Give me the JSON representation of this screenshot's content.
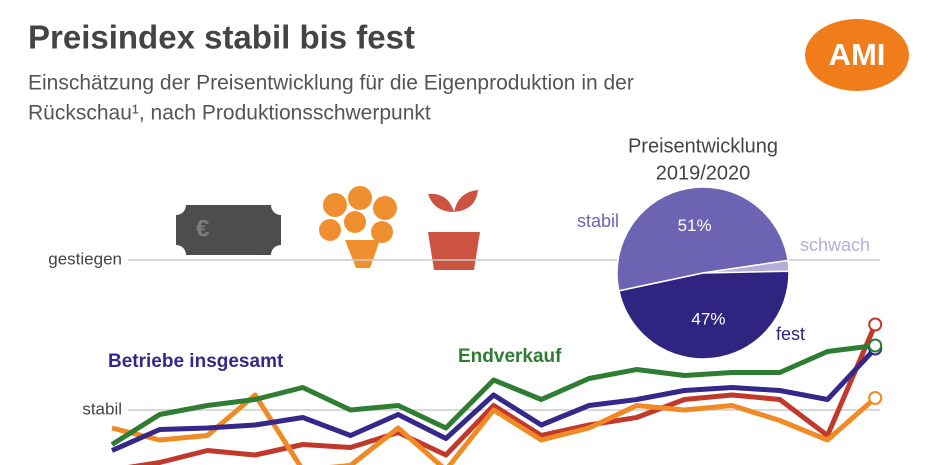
{
  "logo": "AMI",
  "chart_data": [
    {
      "type": "line",
      "title": "Preisindex stabil bis fest",
      "subtitle": [
        "Einschätzung der Preisentwicklung für die Eigenproduktion in der",
        "Rückschau¹, nach Produktionsschwerpunkt"
      ],
      "categories": [
        null,
        null,
        null,
        null,
        null,
        null,
        null,
        null,
        null,
        null,
        null,
        null,
        null,
        null,
        null,
        null,
        null
      ],
      "ylim": [
        -0.4,
        1.2
      ],
      "yticks": [
        {
          "value": 0,
          "label": "stabil"
        },
        {
          "value": 1,
          "label": "gestiegen"
        }
      ],
      "grid": true,
      "series": [
        {
          "color": "#c0392b",
          "values": [
            -0.4,
            -0.35,
            -0.27,
            -0.3,
            -0.23,
            -0.25,
            -0.15,
            -0.3,
            0.03,
            -0.17,
            -0.1,
            -0.05,
            0.07,
            0.1,
            0.07,
            -0.17,
            0.57
          ]
        },
        {
          "color": "#f08a24",
          "values": [
            -0.12,
            -0.2,
            -0.17,
            0.1,
            -0.4,
            -0.37,
            -0.12,
            -0.4,
            0,
            -0.2,
            -0.12,
            0.03,
            0,
            0.03,
            -0.07,
            -0.2,
            0.08
          ]
        },
        {
          "name": "Betriebe insgesamt",
          "color": "#35288a",
          "values": [
            -0.27,
            -0.13,
            -0.12,
            -0.1,
            -0.05,
            -0.17,
            -0.03,
            -0.19,
            0.1,
            -0.1,
            0.03,
            0.07,
            0.13,
            0.15,
            0.13,
            0.07,
            0.41
          ]
        },
        {
          "name": "Endverkauf",
          "color": "#2e7d32",
          "values": [
            -0.23,
            -0.03,
            0.03,
            0.07,
            0.15,
            0,
            0.03,
            -0.12,
            0.2,
            0.07,
            0.21,
            0.27,
            0.23,
            0.25,
            0.25,
            0.39,
            0.43
          ]
        }
      ]
    },
    {
      "type": "pie",
      "title": [
        "Preisentwicklung",
        "2019/2020"
      ],
      "categories": [
        "stabil",
        "schwach",
        "fest"
      ],
      "values": [
        51,
        2,
        47
      ],
      "value_labels": [
        "51%",
        "2%",
        "47%"
      ],
      "colors": [
        "#6c63b2",
        "#b3aed8",
        "#2f2580"
      ]
    }
  ]
}
